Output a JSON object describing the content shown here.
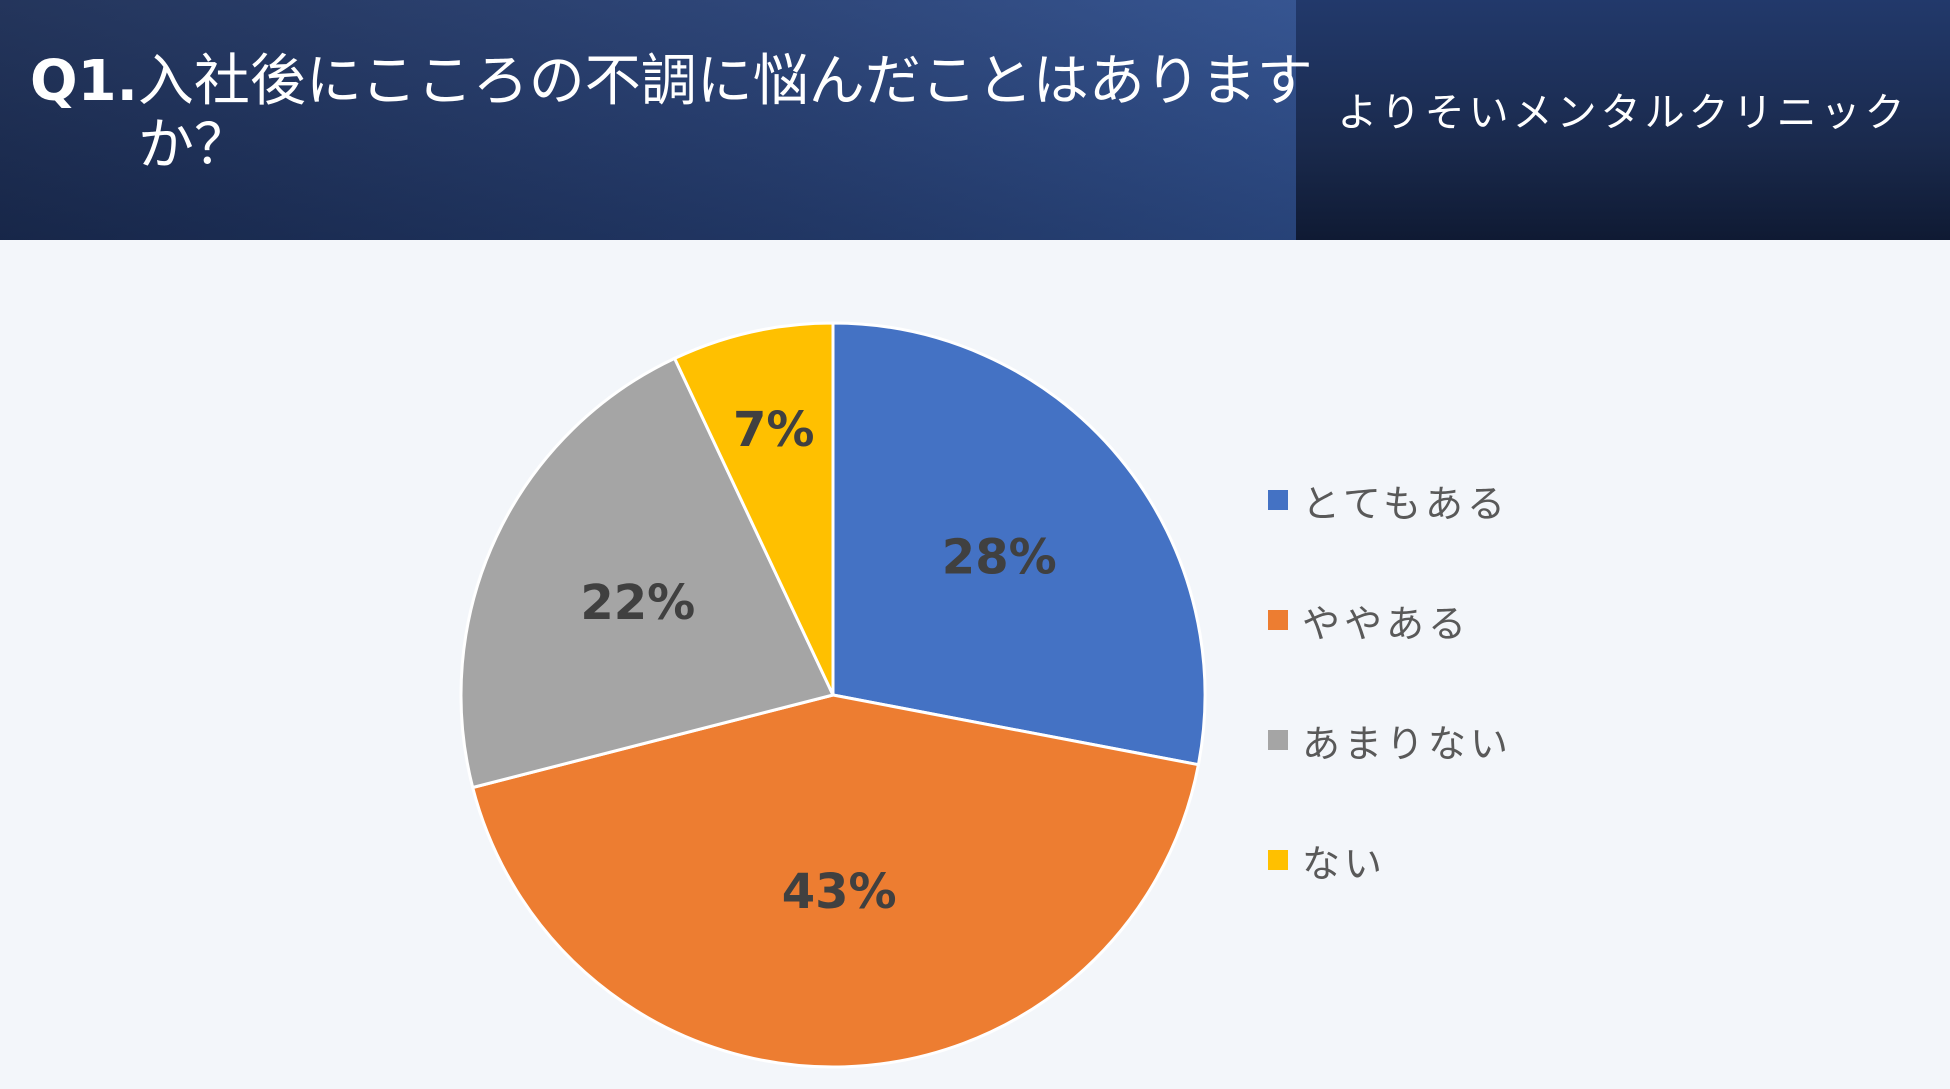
{
  "header": {
    "question_number": "Q1.",
    "question_text": "入社後にこころの不調に悩んだことはありますか？",
    "organization": "よりそいメンタルクリニック"
  },
  "chart_data": {
    "type": "pie",
    "categories": [
      "とてもある",
      "ややある",
      "あまりない",
      "ない"
    ],
    "values": [
      28,
      43,
      22,
      7
    ],
    "data_labels": [
      "28%",
      "43%",
      "22%",
      "7%"
    ],
    "colors": [
      "#4472c4",
      "#ed7d31",
      "#a5a5a5",
      "#ffc000"
    ],
    "start_angle_deg": 0,
    "direction": "clockwise",
    "legend_position": "right"
  }
}
